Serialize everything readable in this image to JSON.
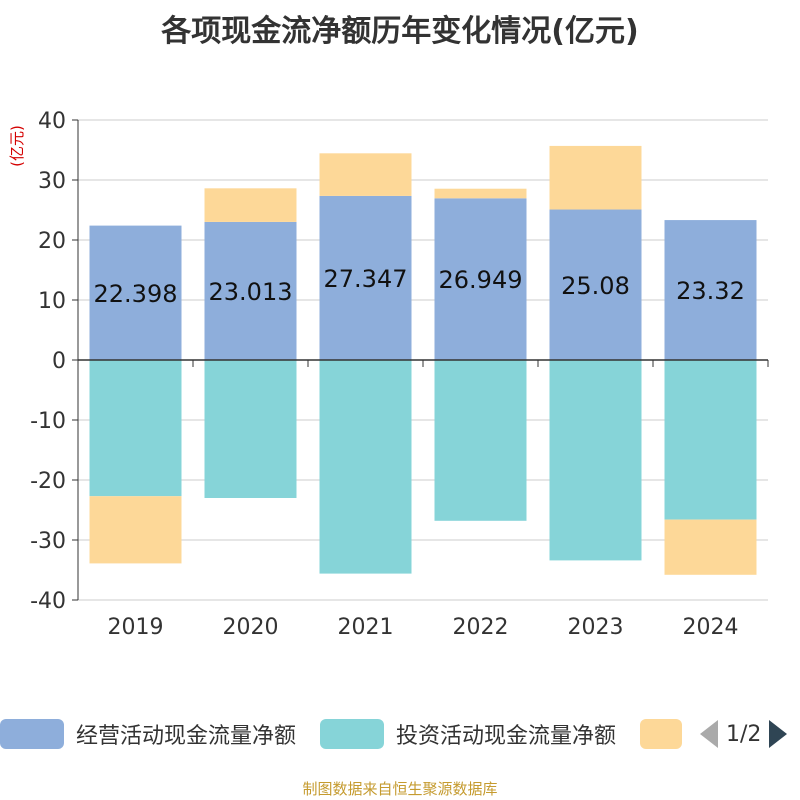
{
  "title": "各项现金流净额历年变化情况(亿元)",
  "source": "制图数据来自恒生聚源数据库",
  "legend": {
    "items": [
      {
        "label": "经营活动现金流量净额",
        "color": "#8eaedb"
      },
      {
        "label": "投资活动现金流量净额",
        "color": "#86d4d8"
      },
      {
        "label": "",
        "color": "#fdd898"
      }
    ],
    "page": "1/2"
  },
  "chart_data": {
    "type": "bar",
    "stacked": true,
    "categories": [
      "2019",
      "2020",
      "2021",
      "2022",
      "2023",
      "2024"
    ],
    "ylabel": "(亿元)",
    "ylim": [
      -40,
      40
    ],
    "yticks": [
      40,
      30,
      20,
      10,
      0,
      -10,
      -20,
      -30,
      -40
    ],
    "grid": true,
    "legend_position": "bottom",
    "series": [
      {
        "name": "经营活动现金流量净额",
        "color": "#8eaedb",
        "values": [
          22.398,
          23.013,
          27.347,
          26.949,
          25.08,
          23.32
        ],
        "labels": [
          "22.398",
          "23.013",
          "27.347",
          "26.949",
          "25.08",
          "23.32"
        ]
      },
      {
        "name": "投资活动现金流量净额",
        "color": "#86d4d8",
        "values": [
          -22.7,
          -23.0,
          -35.6,
          -26.8,
          -33.4,
          -26.6
        ]
      },
      {
        "name": "",
        "color": "#fdd898",
        "values": [
          -11.2,
          5.6,
          7.1,
          1.6,
          10.6,
          -9.2
        ]
      }
    ]
  }
}
